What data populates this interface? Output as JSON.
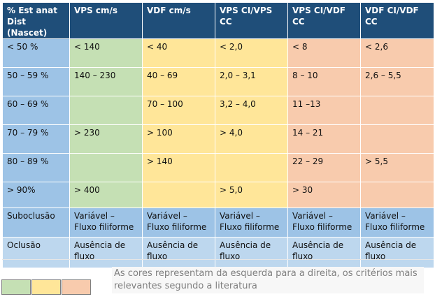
{
  "table": {
    "headers": [
      [
        "% Est anat",
        "Dist (Nascet)"
      ],
      [
        "VPS cm/s"
      ],
      [
        "VDF cm/s"
      ],
      [
        "VPS CI/VPS",
        "CC"
      ],
      [
        "VPS CI/VDF",
        "CC"
      ],
      [
        "VDF CI/VDF",
        "CC"
      ]
    ],
    "rows": [
      {
        "cells": [
          "< 50 %",
          "< 140",
          "< 40",
          "< 2,0",
          "< 8",
          "< 2,6"
        ]
      },
      {
        "cells": [
          "50 – 59 %",
          "140 – 230",
          "40 – 69",
          "2,0 – 3,1",
          "8 – 10",
          "2,6 – 5,5"
        ]
      },
      {
        "cells": [
          "60 – 69 %",
          "",
          "70  – 100",
          "3,2 – 4,0",
          "11 –13",
          ""
        ]
      },
      {
        "cells": [
          "70 – 79 %",
          "> 230",
          "> 100",
          "> 4,0",
          "14 – 21",
          ""
        ]
      },
      {
        "cells": [
          "80 – 89 %",
          "",
          "> 140",
          "",
          "22 – 29",
          "> 5,5"
        ]
      },
      {
        "cells": [
          "> 90%",
          "> 400",
          "",
          "> 5,0",
          "> 30",
          ""
        ]
      },
      {
        "cells": [
          "Suboclusão",
          "Variável – Fluxo filiforme",
          "Variável – Fluxo filiforme",
          "Variável – Fluxo filiforme",
          "Variável – Fluxo filiforme",
          "Variável – Fluxo filiforme"
        ]
      },
      {
        "cells": [
          "Oclusão",
          "Ausência de fluxo",
          "Ausência de fluxo",
          "Ausência de fluxo",
          "Ausência de fluxo",
          "Ausência de fluxo"
        ]
      }
    ]
  },
  "legend": {
    "text": "As cores representam da esquerda para a direita, os critérios mais relevantes segundo a literatura",
    "swatches": [
      "#c5e0b4",
      "#ffe699",
      "#f8cbad"
    ]
  },
  "colors": {
    "header": "#1f4e79",
    "first_col": "#9dc3e6",
    "light_blue": "#bdd7ee",
    "green": "#c5e0b4",
    "yellow": "#ffe699",
    "salmon": "#f8cbad"
  }
}
